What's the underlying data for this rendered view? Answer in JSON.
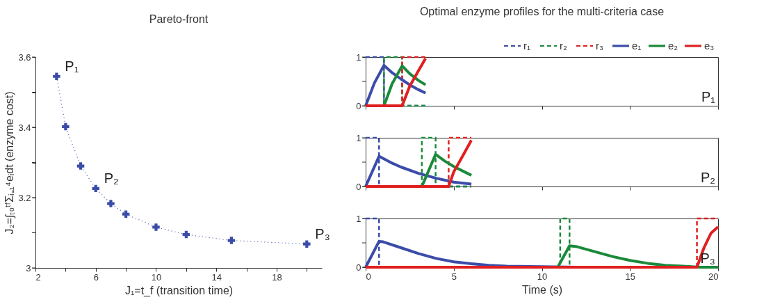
{
  "chart_data": [
    {
      "type": "line",
      "title": "Pareto-front",
      "xlabel": "J₁=t_f (transition time)",
      "ylabel": "J₂=∫ₜ₀ᵗᶠΣᵢ₌₁⁴eᵢdt (enzyme cost)",
      "x": [
        3.4,
        4,
        5,
        6,
        7,
        8,
        10,
        12,
        15,
        20
      ],
      "series": [
        {
          "color": "#3b4ca8",
          "values": [
            3.545,
            3.402,
            3.29,
            3.226,
            3.183,
            3.153,
            3.116,
            3.095,
            3.078,
            3.068
          ]
        }
      ],
      "marker": "cross",
      "line_style": "dotted",
      "grid": false,
      "xlim": [
        2,
        21
      ],
      "xticks": [
        2,
        {
          "value": 4,
          "label": null
        },
        6,
        {
          "value": 8,
          "label": null
        },
        10,
        {
          "value": 12,
          "label": null
        },
        14,
        {
          "value": 16,
          "label": null
        },
        18,
        {
          "value": 20,
          "label": null
        }
      ],
      "ylim": [
        3,
        3.6
      ],
      "yticks": [
        3,
        {
          "value": 3.1,
          "label": null
        },
        3.2,
        {
          "value": 3.3,
          "label": null
        },
        3.4,
        {
          "value": 3.5,
          "label": null
        },
        3.6
      ],
      "annotations": [
        {
          "text": "P₁",
          "x": 3.4,
          "y": 3.545
        },
        {
          "text": "P₂",
          "x": 6,
          "y": 3.226
        },
        {
          "text": "P₃",
          "x": 20,
          "y": 3.068
        }
      ]
    },
    {
      "type": "line",
      "title": "Optimal enzyme profiles for the multi-criteria case",
      "legend": "top right",
      "tick_labels": "y",
      "grid": false,
      "xlim": [
        0,
        20
      ],
      "xticks": [
        0,
        5,
        10,
        15,
        20
      ],
      "ylim": [
        0,
        1
      ],
      "yticks": [
        0,
        {
          "value": 0.5,
          "label": null
        },
        1
      ],
      "series": [
        {
          "name": "r₁",
          "color": "#3b4ca8",
          "line_style": "dashed",
          "x": [
            0,
            1.04,
            1.04,
            3.4
          ],
          "values": [
            1,
            1,
            0,
            0
          ]
        },
        {
          "name": "r₂",
          "color": "#1a8a3a",
          "line_style": "dashed",
          "x": [
            0,
            1.04,
            1.04,
            2.07,
            2.07,
            3.4
          ],
          "values": [
            0,
            0,
            1,
            1,
            0,
            0
          ]
        },
        {
          "name": "r₃",
          "color": "#e02020",
          "line_style": "dashed",
          "x": [
            0,
            2.07,
            2.07,
            3.4
          ],
          "values": [
            0,
            0,
            1,
            1
          ]
        },
        {
          "name": "e₁",
          "color": "#3b4ca8",
          "line_style": "solid",
          "x": [
            0,
            0.5,
            1.04,
            1.5,
            2,
            2.5,
            3,
            3.4
          ],
          "values": [
            0,
            0.47,
            0.83,
            0.68,
            0.55,
            0.43,
            0.33,
            0.26
          ]
        },
        {
          "name": "e₂",
          "color": "#1a8a3a",
          "line_style": "solid",
          "x": [
            0,
            1.04,
            1.5,
            2.07,
            2.5,
            3,
            3.4
          ],
          "values": [
            0,
            0,
            0.45,
            0.82,
            0.66,
            0.52,
            0.43
          ]
        },
        {
          "name": "e₃",
          "color": "#e02020",
          "line_style": "solid",
          "x": [
            0,
            2.07,
            2.5,
            3,
            3.4
          ],
          "values": [
            0,
            0,
            0.4,
            0.72,
            0.97
          ]
        }
      ],
      "annotations": [
        "P₁"
      ]
    },
    {
      "type": "line",
      "tick_labels": "y",
      "grid": false,
      "xlim": [
        0,
        20
      ],
      "xticks": [
        0,
        5,
        10,
        15,
        20
      ],
      "ylim": [
        0,
        1
      ],
      "yticks": [
        0,
        {
          "value": 0.5,
          "label": null
        },
        1
      ],
      "series": [
        {
          "color": "#3b4ca8",
          "line_style": "dashed",
          "x": [
            0,
            0.76,
            0.76,
            6
          ],
          "values": [
            1,
            1,
            0,
            0
          ]
        },
        {
          "color": "#1a8a3a",
          "line_style": "dashed",
          "x": [
            0,
            3.19,
            3.19,
            3.97,
            3.97,
            6
          ],
          "values": [
            0,
            0,
            1,
            1,
            0,
            0
          ]
        },
        {
          "color": "#e02020",
          "line_style": "dashed",
          "x": [
            0,
            4.71,
            4.71,
            6
          ],
          "values": [
            0,
            0,
            1,
            1
          ]
        },
        {
          "color": "#3b4ca8",
          "line_style": "solid",
          "x": [
            0,
            0.76,
            1.5,
            2,
            3,
            4,
            5,
            6
          ],
          "values": [
            0,
            0.62,
            0.48,
            0.4,
            0.27,
            0.17,
            0.09,
            0.05
          ]
        },
        {
          "color": "#1a8a3a",
          "line_style": "solid",
          "x": [
            0,
            3.19,
            3.97,
            4.5,
            5,
            5.5,
            6
          ],
          "values": [
            0,
            0,
            0.66,
            0.52,
            0.41,
            0.32,
            0.23
          ]
        },
        {
          "color": "#e02020",
          "line_style": "solid",
          "x": [
            0,
            4.71,
            5,
            5.5,
            6
          ],
          "values": [
            0,
            0,
            0.3,
            0.62,
            0.95
          ]
        }
      ],
      "annotations": [
        "P₂"
      ]
    },
    {
      "type": "line",
      "xlabel": "Time (s)",
      "grid": false,
      "xlim": [
        0,
        20
      ],
      "xticks": [
        0,
        5,
        10,
        15,
        20
      ],
      "ylim": [
        0,
        1
      ],
      "yticks": [
        0,
        {
          "value": 0.5,
          "label": null
        },
        1
      ],
      "series": [
        {
          "color": "#3b4ca8",
          "line_style": "dashed",
          "x": [
            0,
            0.76,
            0.76
          ],
          "values": [
            1,
            1,
            0
          ]
        },
        {
          "color": "#1a8a3a",
          "line_style": "dashed",
          "x": [
            10,
            11.04,
            11.04,
            11.57,
            11.57,
            12.2
          ],
          "values": [
            0,
            0,
            1,
            1,
            0,
            0
          ]
        },
        {
          "color": "#e02020",
          "line_style": "dashed",
          "x": [
            18.8,
            18.8,
            20
          ],
          "values": [
            0,
            1,
            1
          ]
        },
        {
          "color": "#3b4ca8",
          "line_style": "solid",
          "x": [
            0,
            0.76,
            1,
            2,
            3,
            4,
            5,
            6,
            7,
            8,
            10,
            12
          ],
          "values": [
            0,
            0.53,
            0.52,
            0.4,
            0.28,
            0.18,
            0.11,
            0.07,
            0.04,
            0.02,
            0.01,
            0
          ]
        },
        {
          "color": "#1a8a3a",
          "line_style": "solid",
          "x": [
            10.9,
            11.57,
            12,
            13,
            14,
            15,
            16,
            17,
            18,
            19,
            20
          ],
          "values": [
            0,
            0.44,
            0.42,
            0.32,
            0.22,
            0.14,
            0.08,
            0.04,
            0.02,
            0,
            0
          ]
        },
        {
          "color": "#e02020",
          "line_style": "solid",
          "x": [
            0,
            18.8,
            19.2,
            19.6,
            20
          ],
          "values": [
            0,
            0,
            0.4,
            0.7,
            0.83
          ]
        }
      ],
      "annotations": [
        "P₃"
      ]
    }
  ]
}
